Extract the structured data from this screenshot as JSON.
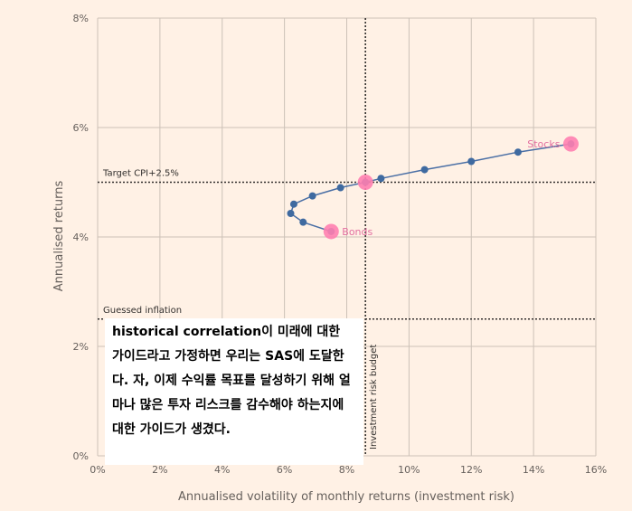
{
  "chart_data": {
    "type": "scatter",
    "xlabel": "Annualised volatility of monthly returns (investment risk)",
    "ylabel": "Annualised returns",
    "xlim": [
      0,
      16
    ],
    "ylim": [
      0,
      8
    ],
    "x_ticks": [
      "0%",
      "2%",
      "4%",
      "6%",
      "8%",
      "10%",
      "12%",
      "14%",
      "16%"
    ],
    "y_ticks": [
      "0%",
      "2%",
      "4%",
      "6%",
      "8%"
    ],
    "grid": true,
    "series": [
      {
        "points": [
          {
            "x": 7.5,
            "y": 4.1
          },
          {
            "x": 6.6,
            "y": 4.27
          },
          {
            "x": 6.2,
            "y": 4.43
          },
          {
            "x": 6.3,
            "y": 4.6
          },
          {
            "x": 6.9,
            "y": 4.75
          },
          {
            "x": 7.8,
            "y": 4.9
          },
          {
            "x": 8.6,
            "y": 5.0
          },
          {
            "x": 9.1,
            "y": 5.07
          },
          {
            "x": 10.5,
            "y": 5.23
          },
          {
            "x": 12.0,
            "y": 5.38
          },
          {
            "x": 13.5,
            "y": 5.55
          },
          {
            "x": 15.2,
            "y": 5.7
          }
        ]
      }
    ],
    "highlights": [
      {
        "label": "Bonds",
        "x": 7.5,
        "y": 4.1
      },
      {
        "label": "",
        "x": 8.6,
        "y": 5.0
      },
      {
        "label": "Stocks",
        "x": 15.2,
        "y": 5.7
      }
    ],
    "reference_lines": [
      {
        "orientation": "horizontal",
        "value": 5.0,
        "label": "Target CPI+2.5%"
      },
      {
        "orientation": "horizontal",
        "value": 2.5,
        "label": "Guessed inflation"
      },
      {
        "orientation": "vertical",
        "value": 8.6,
        "label": "Investment risk budget"
      }
    ],
    "colors": {
      "background": "#fff1e5",
      "grid": "#ccc1b7",
      "line": "#4a6fa5",
      "marker": "#3f6aa0",
      "highlight": "#ff7fb0",
      "highlight_text": "#e36fa0"
    }
  },
  "caption": {
    "bold_part": "historical correlation",
    "text": "이 미래에 대한 가이드라고 가정하면 우리는 SAS에 도달한다. 자, 이제 수익률 목표를 달성하기 위해 얼마나 많은 투자 리스크를 감수해야 하는지에 대한 가이드가 생겼다."
  }
}
